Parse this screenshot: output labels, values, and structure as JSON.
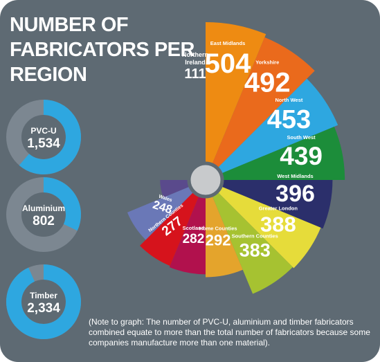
{
  "title_lines": [
    "NUMBER OF",
    "FABRICATORS PER",
    "REGION"
  ],
  "note": "(Note to graph: The number of PVC-U, aluminium and timber fabricators combined equate to more than the total number of fabricators because some companies manufacture more than one material).",
  "colors": {
    "background": "#5e6a73",
    "donut_accent": "#2ea7e0",
    "donut_track": "#7c8791",
    "hub": "#c8cacc"
  },
  "chart_data": [
    {
      "type": "polar-area",
      "title": "NUMBER OF FABRICATORS PER REGION",
      "categories": [
        "East Midlands",
        "Yorkshire",
        "North West",
        "South West",
        "West Midlands",
        "Greater London",
        "Southern Counties",
        "Home Counties",
        "Scotland",
        "Northern Counties",
        "Wales",
        "Northern Ireland"
      ],
      "values": [
        504,
        492,
        453,
        439,
        396,
        388,
        383,
        292,
        282,
        277,
        248,
        111
      ],
      "slice_colors": [
        "#ee8b12",
        "#ea6a1c",
        "#2ea7e0",
        "#1c8d3a",
        "#2b2f6b",
        "#e6dc3a",
        "#a6c231",
        "#e4a42c",
        "#b1114d",
        "#d6131c",
        "#6a78b7",
        "#5a4a8c"
      ]
    },
    {
      "type": "donut",
      "segments": [
        {
          "label": "PVC-U",
          "value_label": "1,534",
          "value": 1534
        },
        {
          "label": "Aluminium",
          "value_label": "802",
          "value": 802
        },
        {
          "label": "Timber",
          "value_label": "2,334",
          "value": 2334
        }
      ],
      "scale_max": 2500
    }
  ]
}
